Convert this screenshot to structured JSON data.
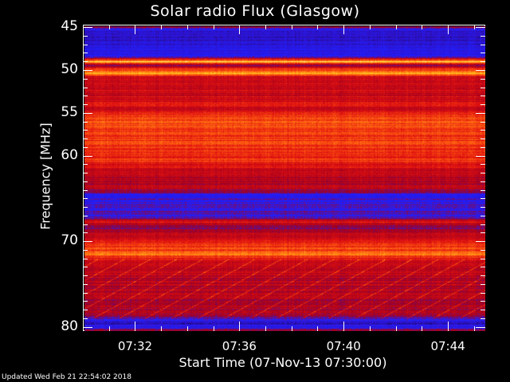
{
  "chart_data": {
    "type": "heatmap",
    "title": "Solar radio Flux (Glasgow)",
    "xlabel": "Start Time (07-Nov-13 07:30:00)",
    "ylabel": "Frequency [MHz]",
    "x_range": [
      "07:30:00",
      "07:45:26"
    ],
    "ylim": [
      44.7,
      80.5
    ],
    "y_inverted": true,
    "x_ticks": [
      "07:32",
      "07:36",
      "07:40",
      "07:44"
    ],
    "y_ticks": [
      45,
      50,
      55,
      60,
      70,
      80
    ],
    "grid": false,
    "colormap": [
      "#000000",
      "#3010c0",
      "#2020ff",
      "#a00020",
      "#e01010",
      "#ff6010",
      "#ffd020",
      "#ffffff"
    ],
    "intensity_profile": [
      [
        44.7,
        0.45
      ],
      [
        45.3,
        0.15
      ],
      [
        47.3,
        0.2
      ],
      [
        48.3,
        0.3
      ],
      [
        48.8,
        0.9
      ],
      [
        49.2,
        0.4
      ],
      [
        50.2,
        0.85
      ],
      [
        50.6,
        0.5
      ],
      [
        54.5,
        0.55
      ],
      [
        55.5,
        0.68
      ],
      [
        60.5,
        0.6
      ],
      [
        61.5,
        0.52
      ],
      [
        63.8,
        0.45
      ],
      [
        64.5,
        0.3
      ],
      [
        67,
        0.32
      ],
      [
        67.6,
        0.55
      ],
      [
        68.5,
        0.4
      ],
      [
        69.5,
        0.52
      ],
      [
        71.5,
        0.72
      ],
      [
        72.2,
        0.5
      ],
      [
        78.5,
        0.45
      ],
      [
        79.5,
        0.15
      ],
      [
        80.5,
        0.4
      ]
    ]
  },
  "footer": {
    "updated": "Updated Wed Feb 21 22:54:02 2018"
  }
}
